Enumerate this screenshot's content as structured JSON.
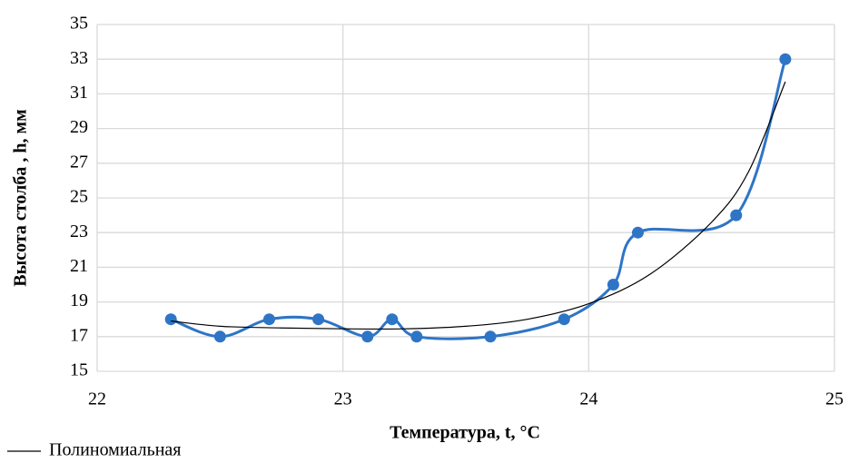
{
  "chart_data": {
    "type": "scatter",
    "xlabel": "Температура, t, °C",
    "ylabel": "Высота столба , h, мм",
    "xlim": [
      22,
      25
    ],
    "xticks": [
      22,
      23,
      24,
      25
    ],
    "ylim": [
      15,
      35
    ],
    "yticks": [
      15,
      17,
      19,
      21,
      23,
      25,
      27,
      29,
      31,
      33,
      35
    ],
    "grid": true,
    "legend": "bottom-left",
    "series": [
      {
        "color": "#2e75c6",
        "x": [
          22.3,
          22.5,
          22.7,
          22.9,
          23.1,
          23.2,
          23.3,
          23.6,
          23.9,
          24.1,
          24.2,
          24.6,
          24.8
        ],
        "values": [
          18,
          17,
          18,
          18,
          17,
          18,
          17,
          17,
          18,
          20,
          23,
          24,
          33
        ]
      },
      {
        "name": "Полиномиальная",
        "color": "#000000",
        "x": [
          22.3,
          22.5,
          22.75,
          23.0,
          23.25,
          23.5,
          23.75,
          24.0,
          24.25,
          24.5,
          24.65,
          24.8
        ],
        "values": [
          17.9,
          17.6,
          17.5,
          17.45,
          17.45,
          17.6,
          18.0,
          18.9,
          20.6,
          23.6,
          26.5,
          31.7
        ]
      }
    ]
  }
}
